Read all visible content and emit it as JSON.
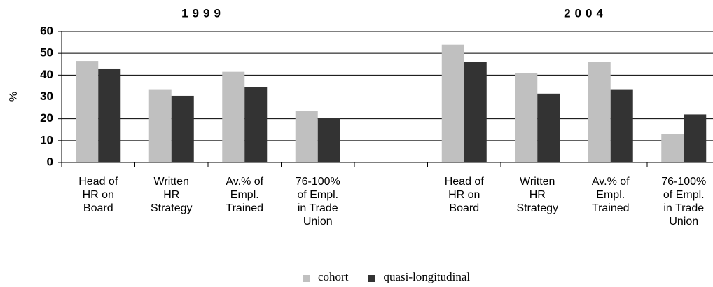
{
  "chart_data": {
    "type": "bar",
    "group_titles": [
      "1999",
      "2004"
    ],
    "y_label": "%",
    "categories": [
      "Head of HR on Board",
      "Written HR Strategy",
      "Av.% of Empl. Trained",
      "76-100% of Empl. in Trade Union",
      null,
      "Head of HR on Board",
      "Written HR Strategy",
      "Av.% of Empl. Trained",
      "76-100% of Empl. in Trade Union"
    ],
    "series": [
      {
        "name": "cohort",
        "color": "#c0c0c0",
        "values": [
          46.5,
          33.5,
          41.5,
          23.5,
          null,
          54,
          41,
          46,
          13
        ]
      },
      {
        "name": "quasi-longitudinal",
        "color": "#333333",
        "values": [
          43,
          30.5,
          34.5,
          20.5,
          null,
          46,
          31.5,
          33.5,
          22
        ]
      }
    ],
    "ylim": [
      0,
      60
    ],
    "yticks": [
      0,
      10,
      20,
      30,
      40,
      50,
      60
    ],
    "grid": true
  }
}
